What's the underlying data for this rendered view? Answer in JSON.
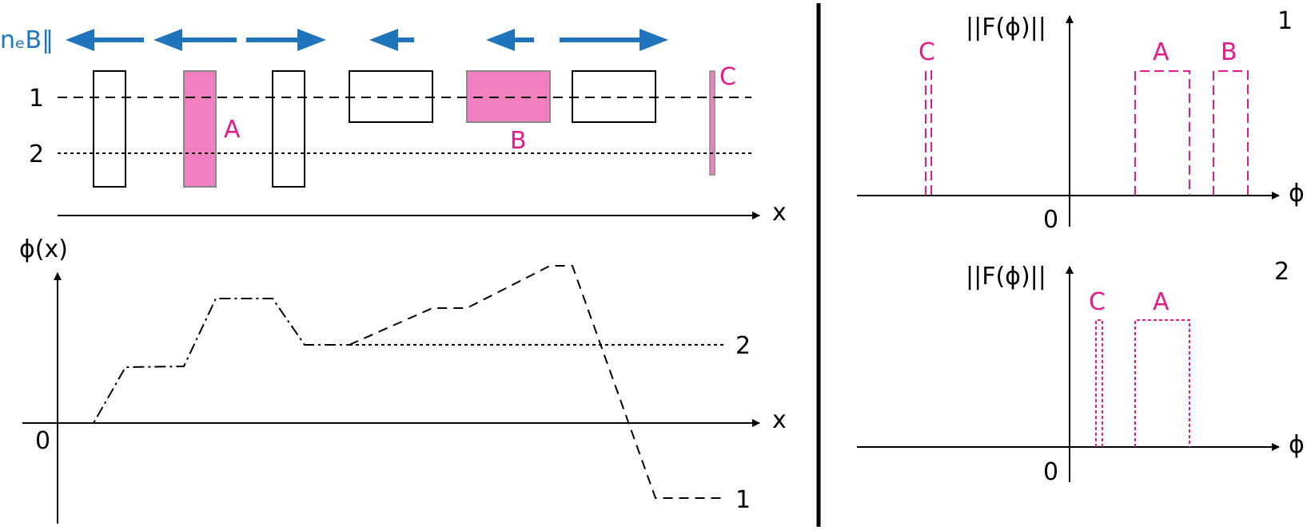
{
  "colors": {
    "accent_pink": "#e8198a",
    "fill_pink": "#f27fc0",
    "arrow_blue": "#1f74bb",
    "ink": "#000000"
  },
  "top_left": {
    "field_label": "nₑB‖",
    "line1_label": "1",
    "line2_label": "2",
    "region_a_label": "A",
    "region_b_label": "B",
    "region_c_label": "C",
    "x_axis_label": "x",
    "arrows": [
      "left",
      "left",
      "right",
      "left",
      "left",
      "right"
    ]
  },
  "bottom_left": {
    "y_axis_label": "ϕ(x)",
    "x_axis_label": "x",
    "origin_label": "0",
    "curve1_label": "1",
    "curve2_label": "2"
  },
  "right_top": {
    "y_axis_label": "||F(ϕ)||",
    "x_axis_label": "ϕ",
    "origin_label": "0",
    "panel_label": "1",
    "peak_labels": [
      "C",
      "A",
      "B"
    ]
  },
  "right_bottom": {
    "y_axis_label": "||F(ϕ)||",
    "x_axis_label": "ϕ",
    "origin_label": "0",
    "panel_label": "2",
    "peak_labels": [
      "C",
      "A"
    ]
  }
}
